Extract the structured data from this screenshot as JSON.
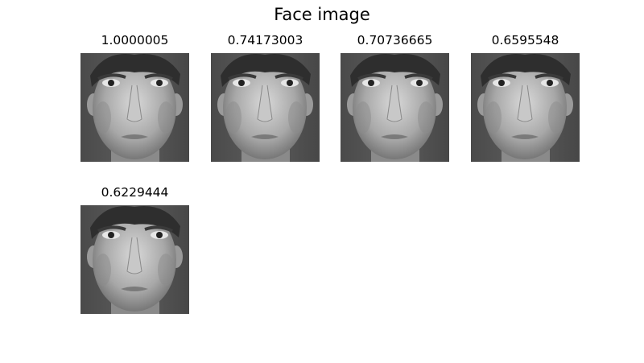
{
  "figure": {
    "title": "Face image"
  },
  "results": [
    {
      "score": "1.0000005"
    },
    {
      "score": "0.74173003"
    },
    {
      "score": "0.70736665"
    },
    {
      "score": "0.6595548"
    },
    {
      "score": "0.6229444"
    }
  ]
}
